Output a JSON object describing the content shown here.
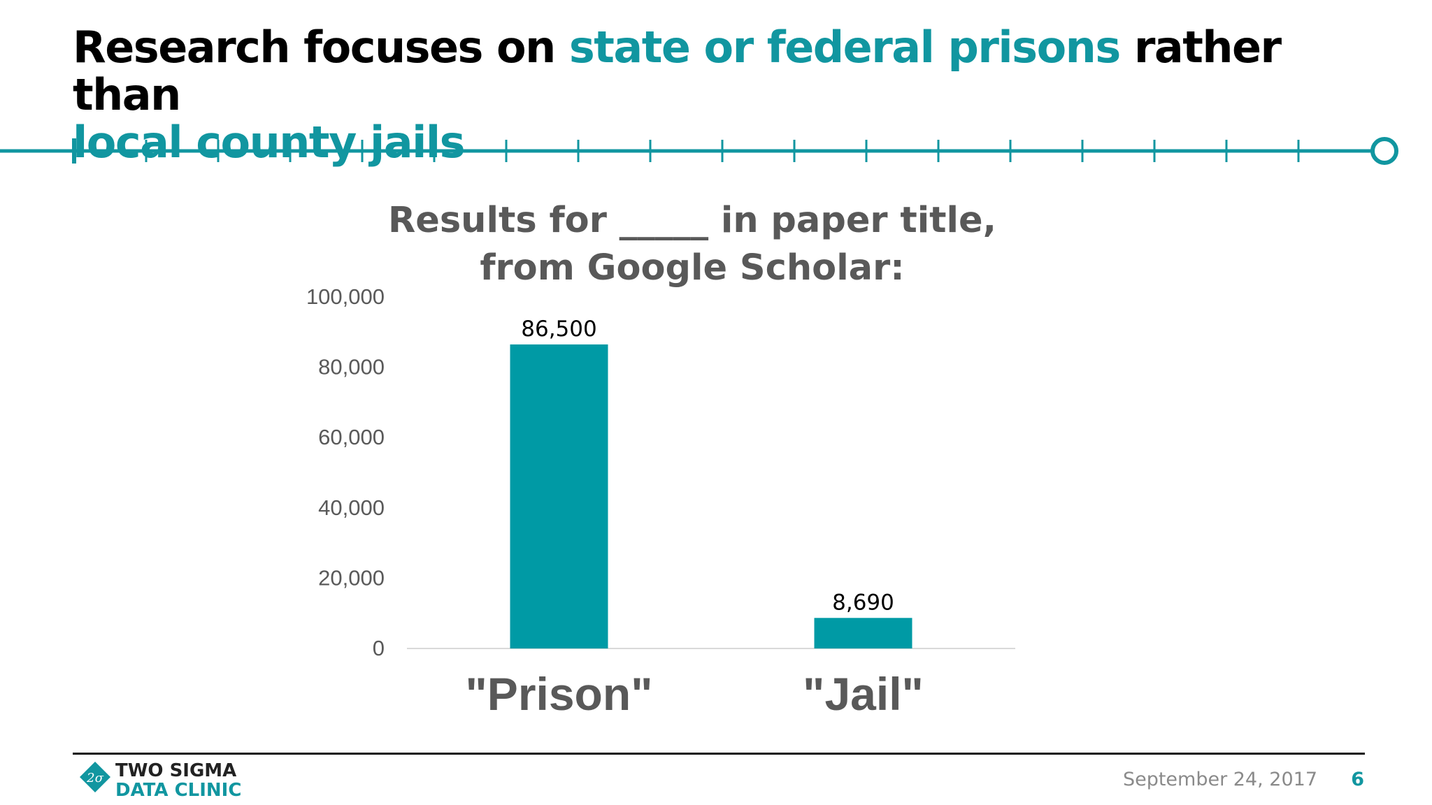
{
  "slide": {
    "title_part1": "Research focuses on ",
    "title_highlight1": "state or federal prisons",
    "title_part2": " rather than ",
    "title_highlight2": "local county jails",
    "accent_color": "#1196a0"
  },
  "chart_data": {
    "type": "bar",
    "title_line1": "Results for _____ in paper title,",
    "title_line2": "from Google Scholar:",
    "categories": [
      "\"Prison\"",
      "\"Jail\""
    ],
    "values": [
      86500,
      8690
    ],
    "value_labels": [
      "86,500",
      "8,690"
    ],
    "ylim": [
      0,
      100000
    ],
    "yticks": [
      0,
      20000,
      40000,
      60000,
      80000,
      100000
    ],
    "ytick_labels": [
      "0",
      "20,000",
      "40,000",
      "60,000",
      "80,000",
      "100,000"
    ],
    "xlabel": "",
    "ylabel": "",
    "grid": false,
    "bar_color": "#009aa5"
  },
  "footer": {
    "logo_line1": "TWO SIGMA",
    "logo_line2": "DATA CLINIC",
    "logo_icon": "diamond-2sigma-icon",
    "date": "September 24, 2017",
    "page_number": "6"
  }
}
